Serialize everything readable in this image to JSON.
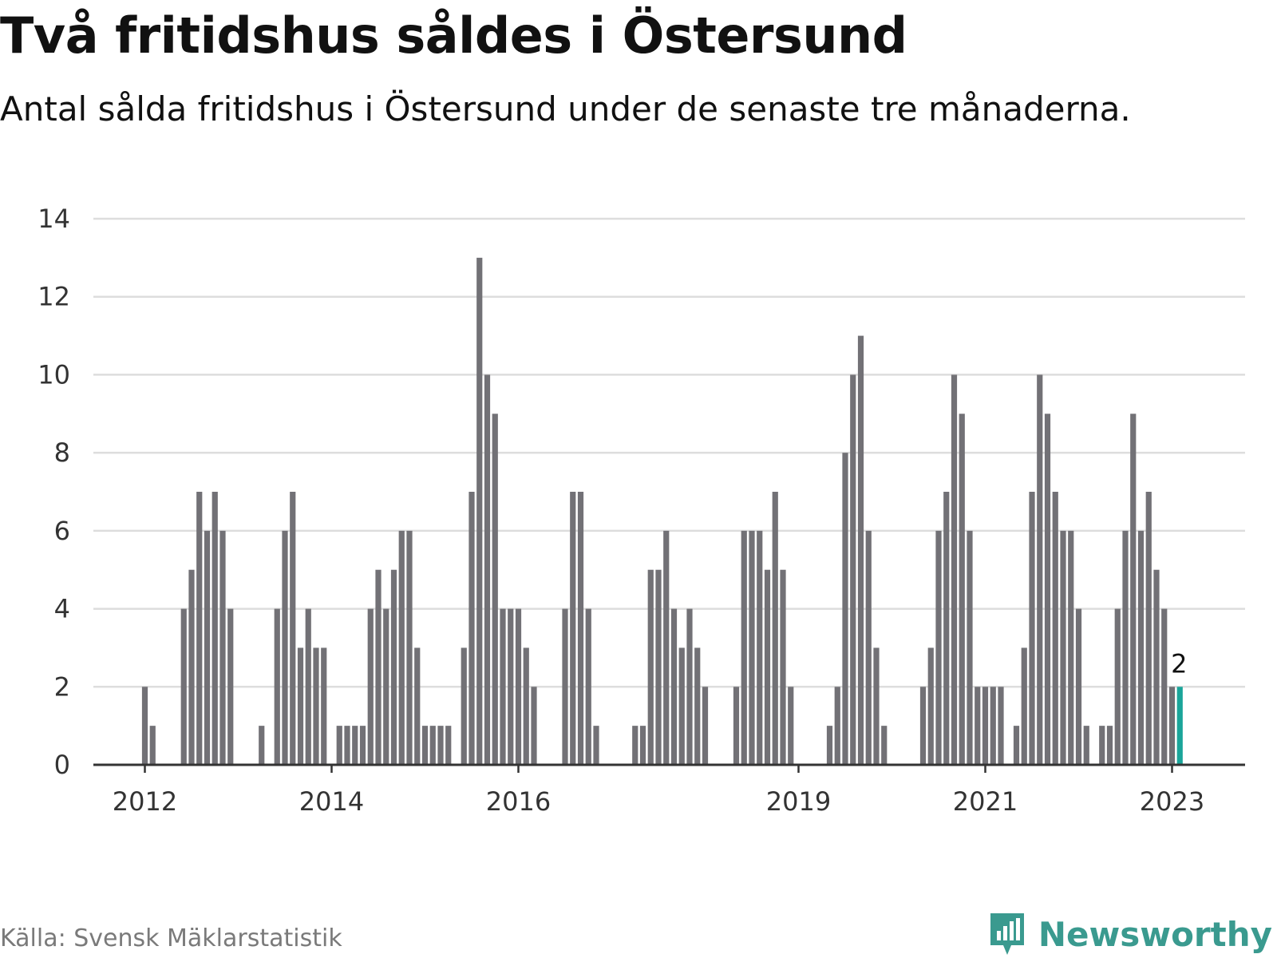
{
  "header": {
    "title": "Två fritidshus såldes i Östersund",
    "subtitle": "Antal sålda fritidshus i Östersund under de senaste tre månaderna."
  },
  "footer": {
    "source": "Källa: Svensk Mäklarstatistik",
    "brand": "Newsworthy"
  },
  "colors": {
    "bar": "#727176",
    "highlight": "#1aa59a",
    "grid": "#dddddd",
    "brand": "#3a9a8f"
  },
  "chart_data": {
    "type": "bar",
    "title": "",
    "xlabel": "",
    "ylabel": "",
    "ylim": [
      0,
      14
    ],
    "yticks": [
      0,
      2,
      4,
      6,
      8,
      10,
      12,
      14
    ],
    "grid": true,
    "x_start": "2011-11",
    "xtick_labels": [
      {
        "label": "2012",
        "index": 1
      },
      {
        "label": "2014",
        "index": 25
      },
      {
        "label": "2016",
        "index": 49
      },
      {
        "label": "2019",
        "index": 85
      },
      {
        "label": "2021",
        "index": 109
      },
      {
        "label": "2023",
        "index": 133
      }
    ],
    "values": [
      0,
      2,
      1,
      0,
      0,
      0,
      4,
      5,
      7,
      6,
      7,
      6,
      4,
      0,
      0,
      0,
      1,
      0,
      4,
      6,
      7,
      3,
      4,
      3,
      3,
      0,
      1,
      1,
      1,
      1,
      4,
      5,
      4,
      5,
      6,
      6,
      3,
      1,
      1,
      1,
      1,
      0,
      3,
      7,
      13,
      10,
      9,
      4,
      4,
      4,
      3,
      2,
      0,
      0,
      0,
      4,
      7,
      7,
      4,
      1,
      0,
      0,
      0,
      0,
      1,
      1,
      5,
      5,
      6,
      4,
      3,
      4,
      3,
      2,
      0,
      0,
      0,
      2,
      6,
      6,
      6,
      5,
      7,
      5,
      2,
      0,
      0,
      0,
      0,
      1,
      2,
      8,
      10,
      11,
      6,
      3,
      1,
      0,
      0,
      0,
      0,
      2,
      3,
      6,
      7,
      10,
      9,
      6,
      2,
      2,
      2,
      2,
      0,
      1,
      3,
      7,
      10,
      9,
      7,
      6,
      6,
      4,
      1,
      0,
      1,
      1,
      4,
      6,
      9,
      6,
      7,
      5,
      4,
      2,
      2
    ],
    "highlight_index": 134,
    "annotations": [
      {
        "index": 134,
        "text": "2"
      }
    ]
  }
}
